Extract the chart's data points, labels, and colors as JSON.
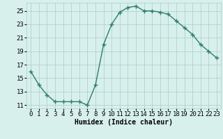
{
  "x": [
    0,
    1,
    2,
    3,
    4,
    5,
    6,
    7,
    8,
    9,
    10,
    11,
    12,
    13,
    14,
    15,
    16,
    17,
    18,
    19,
    20,
    21,
    22,
    23
  ],
  "y": [
    16,
    14,
    12.5,
    11.5,
    11.5,
    11.5,
    11.5,
    11,
    14,
    20,
    23,
    24.8,
    25.5,
    25.7,
    25,
    25,
    24.8,
    24.5,
    23.5,
    22.5,
    21.5,
    20,
    19,
    18
  ],
  "line_color": "#2e7d6e",
  "marker": "+",
  "marker_size": 4,
  "bg_color": "#d8f0ec",
  "grid_color": "#aaccc8",
  "xlabel": "Humidex (Indice chaleur)",
  "xlim": [
    -0.5,
    23.5
  ],
  "ylim": [
    10.5,
    26.2
  ],
  "yticks": [
    11,
    13,
    15,
    17,
    19,
    21,
    23,
    25
  ],
  "xtick_labels": [
    "0",
    "1",
    "2",
    "3",
    "4",
    "5",
    "6",
    "7",
    "8",
    "9",
    "10",
    "11",
    "12",
    "13",
    "14",
    "15",
    "16",
    "17",
    "18",
    "19",
    "20",
    "21",
    "22",
    "23"
  ],
  "xlabel_fontsize": 7,
  "tick_fontsize": 6.5,
  "linewidth": 1.0
}
